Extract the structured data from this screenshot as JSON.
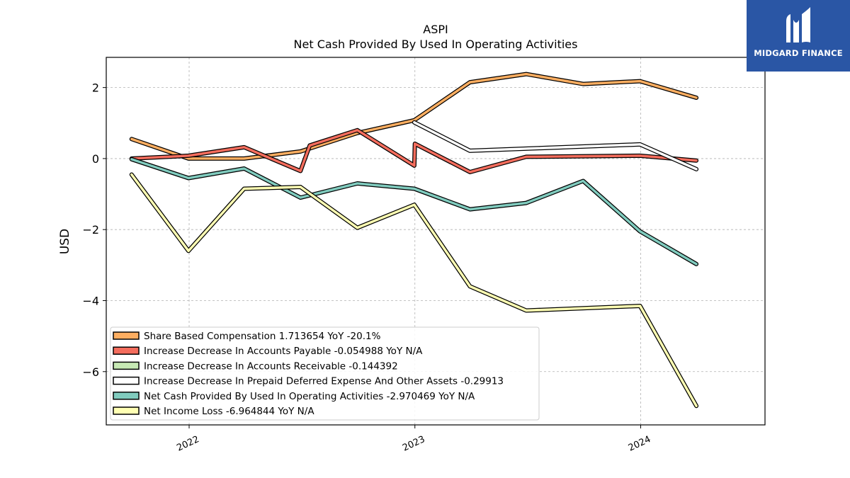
{
  "chart_data": {
    "type": "line",
    "title": "ASPI",
    "subtitle": "Net Cash Provided By Used In Operating Activities",
    "ylabel": "USD",
    "xlim": [
      "2021-08-20",
      "2024-07-20"
    ],
    "ylim": [
      -7.5,
      2.85
    ],
    "y_ticks": [
      2,
      0,
      -2,
      -4,
      -6
    ],
    "y_tick_labels": [
      "2",
      "0",
      "−2",
      "−4",
      "−6"
    ],
    "x_ticks": [
      "2022-01-01",
      "2023-01-01",
      "2024-01-01"
    ],
    "x_tick_labels": [
      "2022",
      "2023",
      "2024"
    ],
    "grid": true,
    "legend_position": "lower-left",
    "series": [
      {
        "name": "Share Based Compensation",
        "legend": "Share Based Compensation  1.713654 YoY -20.1%",
        "color": "#fdae61",
        "points": [
          [
            "2021-09-30",
            0.55
          ],
          [
            "2021-12-31",
            0.0
          ],
          [
            "2022-03-31",
            0.0
          ],
          [
            "2022-06-30",
            0.2
          ],
          [
            "2022-09-30",
            0.72
          ],
          [
            "2022-12-31",
            1.08
          ],
          [
            "2023-03-31",
            2.15
          ],
          [
            "2023-06-30",
            2.38
          ],
          [
            "2023-09-30",
            2.1
          ],
          [
            "2023-12-31",
            2.18
          ],
          [
            "2024-03-31",
            1.713654
          ]
        ]
      },
      {
        "name": "Increase Decrease In Accounts Payable",
        "legend": "Increase Decrease In Accounts Payable  -0.054988 YoY N/A",
        "color": "#f46d5d",
        "points": [
          [
            "2021-09-30",
            0.0
          ],
          [
            "2021-12-31",
            0.08
          ],
          [
            "2022-03-31",
            0.32
          ],
          [
            "2022-06-30",
            -0.35
          ],
          [
            "2022-07-15",
            0.37
          ],
          [
            "2022-09-30",
            0.8
          ],
          [
            "2022-12-31",
            -0.2
          ],
          [
            "2023-01-01",
            0.42
          ],
          [
            "2023-03-31",
            -0.38
          ],
          [
            "2023-06-30",
            0.05
          ],
          [
            "2023-12-31",
            0.08
          ],
          [
            "2024-03-31",
            -0.054988
          ]
        ]
      },
      {
        "name": "Increase Decrease In Accounts Receivable",
        "legend": "Increase Decrease In Accounts Receivable  -0.144392",
        "color": "#c7e9b4",
        "points": []
      },
      {
        "name": "Increase Decrease In Prepaid Deferred Expense And Other Assets",
        "legend": "Increase Decrease In Prepaid Deferred Expense And Other Assets  -0.29913",
        "color": "#ffffff",
        "points": [
          [
            "2022-12-31",
            1.02
          ],
          [
            "2023-03-31",
            0.22
          ],
          [
            "2023-06-30",
            0.28
          ],
          [
            "2023-12-31",
            0.4
          ],
          [
            "2024-03-31",
            -0.29913
          ]
        ]
      },
      {
        "name": "Net Cash Provided By Used In Operating Activities",
        "legend": "Net Cash Provided By Used In Operating Activities  -2.970469 YoY N/A",
        "color": "#80cbbe",
        "points": [
          [
            "2021-09-30",
            -0.02
          ],
          [
            "2021-12-31",
            -0.55
          ],
          [
            "2022-03-31",
            -0.28
          ],
          [
            "2022-06-30",
            -1.1
          ],
          [
            "2022-09-30",
            -0.7
          ],
          [
            "2022-12-31",
            -0.85
          ],
          [
            "2023-03-31",
            -1.43
          ],
          [
            "2023-06-30",
            -1.25
          ],
          [
            "2023-09-30",
            -0.63
          ],
          [
            "2023-12-31",
            -2.05
          ],
          [
            "2024-03-31",
            -2.970469
          ]
        ]
      },
      {
        "name": "Net Income Loss",
        "legend": "Net Income Loss  -6.964844 YoY N/A",
        "color": "#ffffb3",
        "points": [
          [
            "2021-09-30",
            -0.45
          ],
          [
            "2021-12-31",
            -2.6
          ],
          [
            "2022-03-31",
            -0.85
          ],
          [
            "2022-06-30",
            -0.8
          ],
          [
            "2022-09-30",
            -1.95
          ],
          [
            "2022-12-31",
            -1.3
          ],
          [
            "2023-03-31",
            -3.6
          ],
          [
            "2023-06-30",
            -4.28
          ],
          [
            "2023-12-31",
            -4.15
          ],
          [
            "2024-03-31",
            -6.964844
          ]
        ]
      }
    ]
  },
  "logo": {
    "text": "MIDGARD FINANCE",
    "color": "#2a56a5"
  }
}
